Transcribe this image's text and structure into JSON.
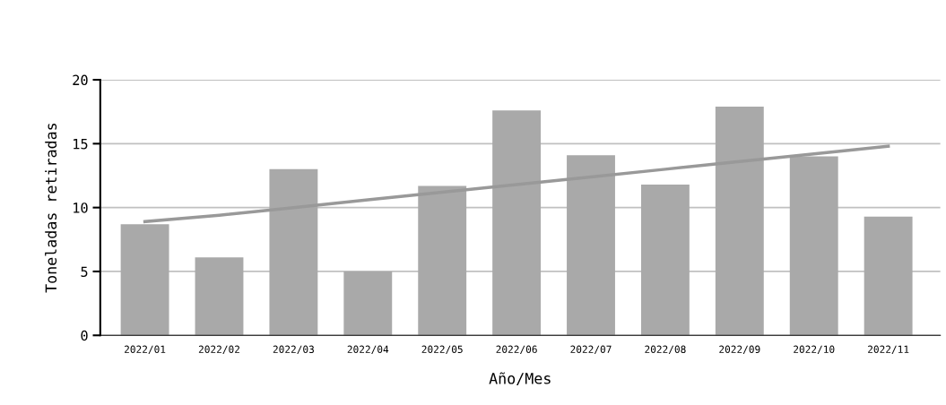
{
  "chart_data": {
    "type": "bar",
    "xlabel": "Año/Mes",
    "ylabel": "Toneladas retiradas",
    "categories": [
      "2022/01",
      "2022/02",
      "2022/03",
      "2022/04",
      "2022/05",
      "2022/06",
      "2022/07",
      "2022/08",
      "2022/09",
      "2022/10",
      "2022/11"
    ],
    "series": [
      {
        "color": "#a9a9a9",
        "values": [
          8.7,
          6.1,
          13.0,
          5.0,
          11.7,
          17.6,
          14.1,
          11.8,
          17.9,
          14.0,
          9.3
        ]
      },
      {
        "type": "line",
        "color": "#999999",
        "values": [
          8.9,
          9.4,
          10.0,
          10.6,
          11.2,
          11.8,
          12.4,
          13.0,
          13.6,
          14.2,
          14.8
        ]
      }
    ],
    "ylim": [
      0,
      20
    ],
    "yticks": [
      0,
      5,
      10,
      15,
      20
    ],
    "grid": "y",
    "legend": false
  }
}
